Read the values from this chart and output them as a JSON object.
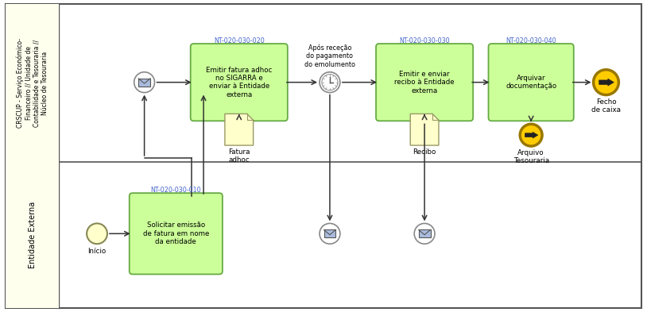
{
  "bg_outer": "#ffffff",
  "bg_lane1": "#ffffff",
  "bg_lane2": "#ffffff",
  "bg_label": "#ffffee",
  "label_border": "#aaaaaa",
  "task_fill": "#ccff99",
  "task_border": "#66aa44",
  "doc_fill": "#ffffcc",
  "doc_border": "#aaaaaa",
  "event_circle_fill": "#ffffff",
  "event_circle_border": "#888888",
  "end_fill": "#ffcc00",
  "end_border": "#aa8800",
  "arrow_color": "#333333",
  "nt_color": "#4466cc",
  "text_color": "#000000",
  "gray_text": "#555555",
  "figsize": [
    8.14,
    3.93
  ],
  "dpi": 100,
  "lane1_label": "CRSCUP - Serviço Económico-\nFinanceiro // Unidade de\nContabilidade e Tesouraria //\nNúcleo de Tesouraria",
  "lane2_label": "Entidade Externa",
  "task1_label": "Emitir fatura adhoc\nno SIGARRA e\nenviar à Entidade\nexterna",
  "task1_nt": "NT-020-030-020",
  "task2_label": "Emitir e enviar\nrecibo à Entidade\nexterna",
  "task2_nt": "NT-020-030-030",
  "task3_label": "Arquivar\ndocumentação",
  "task3_nt": "NT-020-030-040",
  "taskB_label": "Solicitar emissão\nde fatura em nome\nda entidade",
  "taskB_nt": "NT-020-030-010",
  "timer_label": "Após receção\ndo pagamento\ndo emolumento",
  "end_label": "Fecho\nde caixa",
  "arch_label": "Arquivo\nTesouraria",
  "doc1_label": "Fatura\nadhoc",
  "doc2_label": "Recibo",
  "inicio_label": "Início"
}
